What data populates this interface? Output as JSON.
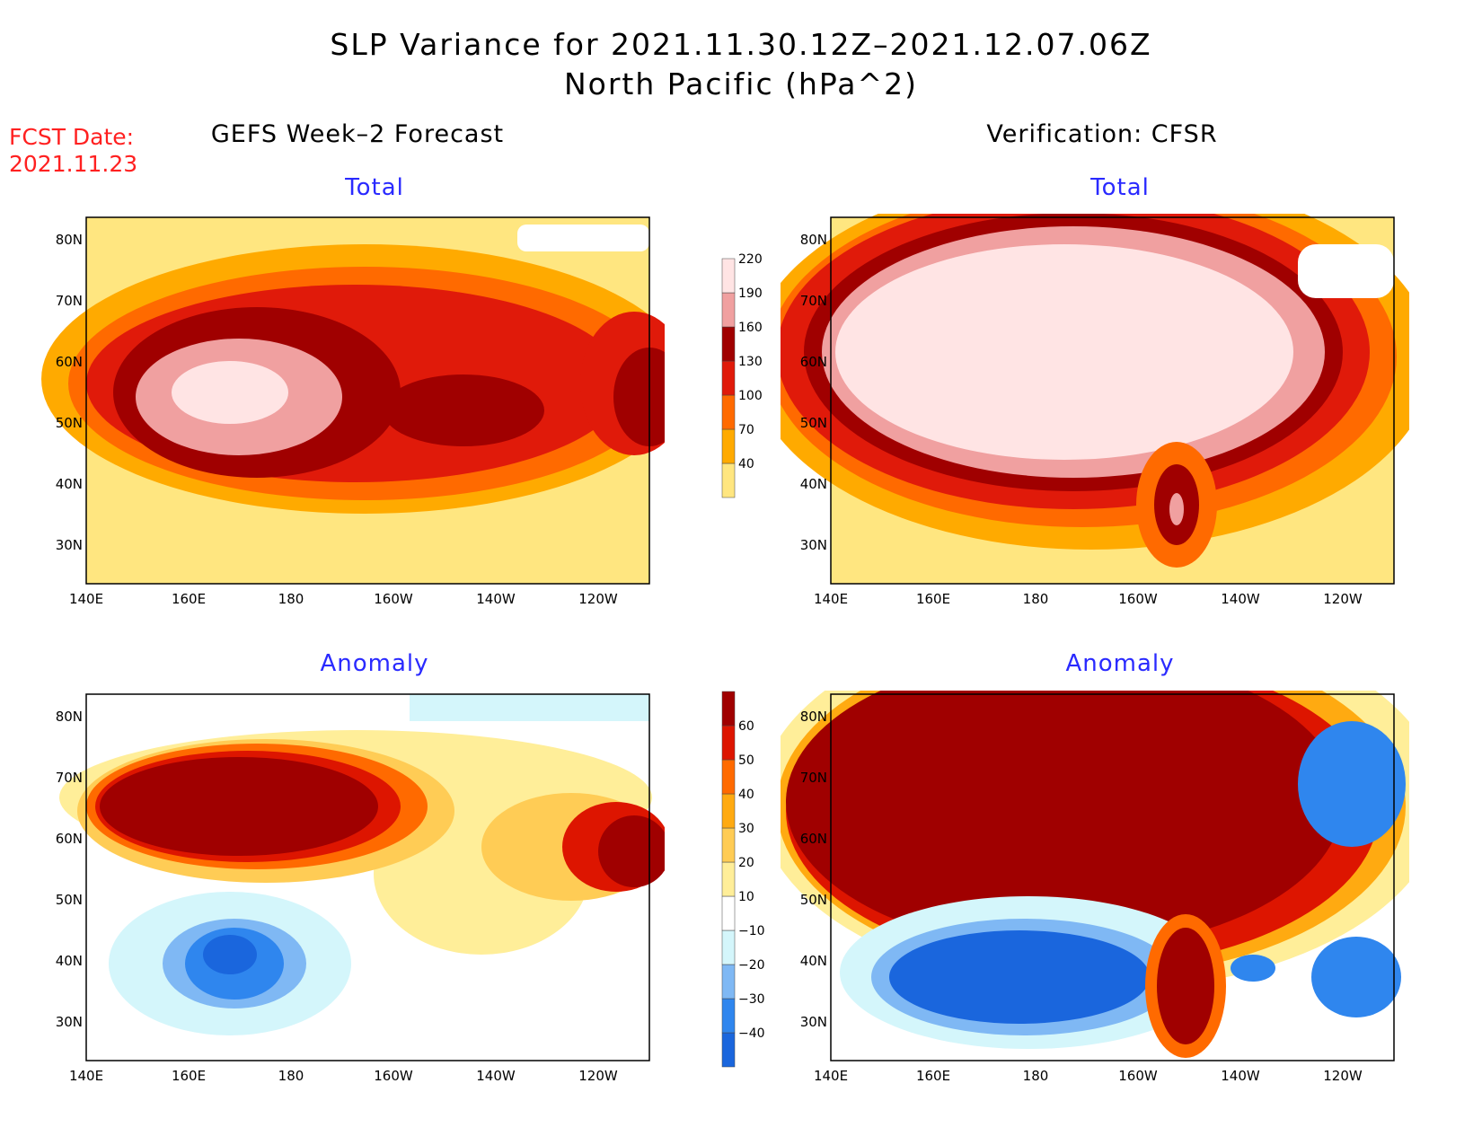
{
  "title": {
    "line1": "SLP Variance for 2021.11.30.12Z–2021.12.07.06Z",
    "line2": "North Pacific (hPa^2)"
  },
  "fcst": {
    "label": "FCST Date:",
    "date": "2021.11.23"
  },
  "columns": {
    "left": "GEFS Week–2 Forecast",
    "right": "Verification: CFSR"
  },
  "panels": [
    {
      "id": "gefs-total",
      "subtitle": "Total",
      "scale": "total"
    },
    {
      "id": "cfsr-total",
      "subtitle": "Total",
      "scale": "total"
    },
    {
      "id": "gefs-anomaly",
      "subtitle": "Anomaly",
      "scale": "anomaly"
    },
    {
      "id": "cfsr-anomaly",
      "subtitle": "Anomaly",
      "scale": "anomaly"
    }
  ],
  "map": {
    "lon_labels": [
      "140E",
      "160E",
      "180",
      "160W",
      "140W",
      "120W"
    ],
    "lat_labels": [
      "80N",
      "70N",
      "60N",
      "50N",
      "40N",
      "30N"
    ],
    "lon_range": [
      140,
      250
    ],
    "lat_range": [
      25,
      85
    ]
  },
  "colorbars": {
    "total": {
      "levels": [
        "40",
        "70",
        "100",
        "130",
        "160",
        "190",
        "220"
      ],
      "colors": [
        "#ffe680",
        "#ffaa00",
        "#ff6a00",
        "#e01a0a",
        "#a00000",
        "#f0a0a0",
        "#ffe4e4"
      ]
    },
    "anomaly": {
      "levels": [
        "−40",
        "−30",
        "−20",
        "−10",
        "10",
        "20",
        "30",
        "40",
        "50",
        "60"
      ],
      "colors": [
        "#1a66dd",
        "#2f86ee",
        "#7fb8f4",
        "#d4f6fb",
        "#ffffff",
        "#ffee99",
        "#ffcc55",
        "#ffaa11",
        "#ff6a00",
        "#dd1500",
        "#a00000"
      ]
    }
  }
}
